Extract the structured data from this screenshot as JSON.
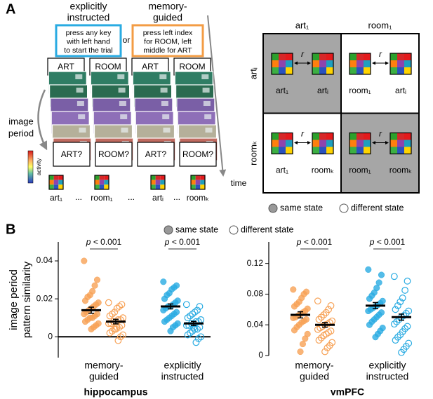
{
  "panel_a": {
    "label": "A",
    "conditions": [
      {
        "title": [
          "explicitly",
          "instructed"
        ],
        "color": "#29abe2",
        "instruction": [
          "press any key",
          "with left hand",
          "to start the trial"
        ]
      },
      {
        "title": [
          "memory-",
          "guided"
        ],
        "color": "#f39c44",
        "instruction": [
          "press left index",
          "for ROOM, left",
          "middle for ART"
        ]
      }
    ],
    "or": "or",
    "cues": [
      "ART",
      "ROOM",
      "ART",
      "ROOM"
    ],
    "probes": [
      "ART?",
      "ROOM?",
      "ART?",
      "ROOM?"
    ],
    "image_period": [
      "image",
      "period"
    ],
    "colorbar_label": "activity",
    "time": "time",
    "patterns": [
      "art₁",
      "room₁",
      "artᵢ",
      "roomₖ"
    ],
    "ellipsis": "...",
    "matrix": {
      "columns": [
        "art₁",
        "room₁"
      ],
      "rows": [
        "artᵢ",
        "roomₖ"
      ],
      "symbol": "r",
      "cells": [
        [
          [
            "art₁",
            "artᵢ"
          ],
          [
            "room₁",
            "artᵢ"
          ]
        ],
        [
          [
            "art₁",
            "roomₖ"
          ],
          [
            "room₁",
            "roomₖ"
          ]
        ]
      ]
    },
    "legend": [
      "same state",
      "different state"
    ]
  },
  "panel_b": {
    "label": "B",
    "legend": [
      "same state",
      "different state"
    ]
  },
  "chart_data": [
    {
      "type": "strip",
      "title": "hippocampus",
      "ylabel": [
        "image period",
        "pattern similarity"
      ],
      "ylim": [
        -0.011,
        0.05
      ],
      "yticks": [
        0,
        0.02,
        0.04
      ],
      "zero_line": true,
      "categories": [
        [
          "memory-",
          "guided"
        ],
        [
          "explicitly",
          "instructed"
        ]
      ],
      "colors": [
        "#f7a155",
        "#29abe2"
      ],
      "groups": [
        {
          "same": {
            "values": [
              0.04,
              0.03,
              0.027,
              0.024,
              0.022,
              0.021,
              0.019,
              0.018,
              0.017,
              0.016,
              0.015,
              0.014,
              0.013,
              0.012,
              0.012,
              0.011,
              0.01,
              0.01,
              0.009,
              0.008,
              0.007,
              0.006,
              0.005,
              0.004
            ],
            "mean": 0.014,
            "error": 0.0016
          },
          "different": {
            "values": [
              0.018,
              0.017,
              0.016,
              0.015,
              0.013,
              0.012,
              0.011,
              0.01,
              0.009,
              0.009,
              0.008,
              0.008,
              0.007,
              0.007,
              0.006,
              0.005,
              0.005,
              0.004,
              0.003,
              0.002,
              0.001,
              0.0,
              -0.002,
              0.004
            ],
            "mean": 0.008,
            "error": 0.0012
          },
          "annotation": {
            "symbol": "p",
            "text": "< 0.001"
          }
        },
        {
          "same": {
            "values": [
              0.029,
              0.027,
              0.026,
              0.025,
              0.023,
              0.022,
              0.02,
              0.019,
              0.018,
              0.017,
              0.016,
              0.016,
              0.015,
              0.014,
              0.013,
              0.012,
              0.011,
              0.01,
              0.009,
              0.008,
              0.007,
              0.006,
              0.005,
              0.003
            ],
            "mean": 0.016,
            "error": 0.0013
          },
          "different": {
            "values": [
              0.017,
              0.016,
              0.014,
              0.013,
              0.012,
              0.011,
              0.01,
              0.009,
              0.008,
              0.008,
              0.007,
              0.007,
              0.006,
              0.006,
              0.005,
              0.004,
              0.004,
              0.003,
              0.002,
              0.001,
              0.0,
              -0.001,
              -0.003,
              0.005
            ],
            "mean": 0.007,
            "error": 0.0011
          },
          "annotation": {
            "symbol": "p",
            "text": "< 0.001"
          }
        }
      ]
    },
    {
      "type": "strip",
      "title": "vmPFC",
      "ylim": [
        0,
        0.148
      ],
      "yticks": [
        0,
        0.04,
        0.08,
        0.12
      ],
      "zero_line": false,
      "categories": [
        [
          "memory-",
          "guided"
        ],
        [
          "explicitly",
          "instructed"
        ]
      ],
      "colors": [
        "#f7a155",
        "#29abe2"
      ],
      "groups": [
        {
          "same": {
            "values": [
              0.086,
              0.083,
              0.08,
              0.075,
              0.07,
              0.067,
              0.064,
              0.061,
              0.058,
              0.056,
              0.054,
              0.052,
              0.05,
              0.049,
              0.047,
              0.045,
              0.043,
              0.04,
              0.037,
              0.033,
              0.028,
              0.022,
              0.015,
              0.005
            ],
            "mean": 0.053,
            "error": 0.004
          },
          "different": {
            "values": [
              0.071,
              0.065,
              0.06,
              0.056,
              0.053,
              0.05,
              0.047,
              0.045,
              0.043,
              0.041,
              0.04,
              0.038,
              0.036,
              0.034,
              0.032,
              0.03,
              0.028,
              0.026,
              0.023,
              0.02,
              0.017,
              0.013,
              0.01,
              0.005
            ],
            "mean": 0.04,
            "error": 0.003
          },
          "annotation": {
            "symbol": "p",
            "text": "< 0.001"
          }
        },
        {
          "same": {
            "values": [
              0.112,
              0.105,
              0.095,
              0.088,
              0.082,
              0.078,
              0.074,
              0.071,
              0.068,
              0.066,
              0.064,
              0.062,
              0.06,
              0.058,
              0.056,
              0.053,
              0.05,
              0.047,
              0.044,
              0.04,
              0.036,
              0.032,
              0.028,
              0.024
            ],
            "mean": 0.065,
            "error": 0.004
          },
          "different": {
            "values": [
              0.103,
              0.097,
              0.085,
              0.075,
              0.07,
              0.065,
              0.06,
              0.058,
              0.055,
              0.052,
              0.05,
              0.047,
              0.044,
              0.041,
              0.038,
              0.035,
              0.031,
              0.027,
              0.024,
              0.02,
              0.016,
              0.012,
              0.008,
              0.004
            ],
            "mean": 0.05,
            "error": 0.004
          },
          "annotation": {
            "symbol": "p",
            "text": "< 0.001"
          }
        }
      ]
    }
  ]
}
